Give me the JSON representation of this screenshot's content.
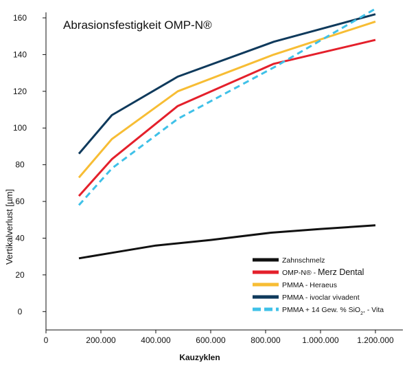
{
  "chart_data": {
    "type": "line",
    "title": "Abrasionsfestigkeit OMP-N®",
    "xlabel": "Kauzyklen",
    "ylabel": "Vertikalverlust [µm]",
    "xlim": [
      0,
      1300000
    ],
    "x_ticks": [
      0,
      200000,
      400000,
      600000,
      800000,
      1000000,
      1200000
    ],
    "x_tick_labels": [
      "0",
      "200.000",
      "400.000",
      "600.000",
      "800.000",
      "1.000.000",
      "1.200.000"
    ],
    "y_tick_labels": [
      "0",
      "20",
      "40",
      "60",
      "80",
      "100",
      "120",
      "140",
      "160"
    ],
    "y_tick_positions": [
      0,
      20,
      40,
      60,
      80,
      100,
      120,
      140,
      160
    ],
    "ylim": [
      -10,
      163
    ],
    "grid": false,
    "legend_position": "bottom-right",
    "series": [
      {
        "name": "Zahnschmelz",
        "color": "#111111",
        "dash": "solid",
        "label_parts": [
          "Zahnschmelz"
        ],
        "x": [
          120000,
          240000,
          400000,
          600000,
          820000,
          1000000,
          1200000
        ],
        "values": [
          29,
          32,
          36,
          39,
          43,
          45,
          47
        ]
      },
      {
        "name": "OMP-N® - Merz Dental",
        "color": "#e4202b",
        "dash": "solid",
        "label_parts": [
          "OMP-N® - ",
          "Merz Dental"
        ],
        "x": [
          120000,
          240000,
          480000,
          830000,
          1200000
        ],
        "values": [
          63,
          83,
          112,
          135,
          148
        ]
      },
      {
        "name": "PMMA - Heraeus",
        "color": "#f7bd34",
        "dash": "solid",
        "label_parts": [
          "PMMA - Heraeus"
        ],
        "x": [
          120000,
          240000,
          480000,
          830000,
          1200000
        ],
        "values": [
          73,
          94,
          120,
          140,
          158
        ]
      },
      {
        "name": "PMMA - ivoclar vivadent",
        "color": "#0f3a5c",
        "dash": "solid",
        "label_parts": [
          "PMMA - ivoclar vivadent"
        ],
        "x": [
          120000,
          240000,
          480000,
          830000,
          1200000
        ],
        "values": [
          86,
          107,
          128,
          147,
          162
        ]
      },
      {
        "name": "PMMA + 14 Gew. % SiO2 - Vita",
        "color": "#3fc1e8",
        "dash": "dashed",
        "label_parts": [
          "PMMA + 14 Gew. % SiO",
          "2",
          ", - Vita"
        ],
        "x": [
          120000,
          240000,
          480000,
          830000,
          1200000
        ],
        "values": [
          58,
          78,
          105,
          133,
          165
        ]
      }
    ]
  }
}
